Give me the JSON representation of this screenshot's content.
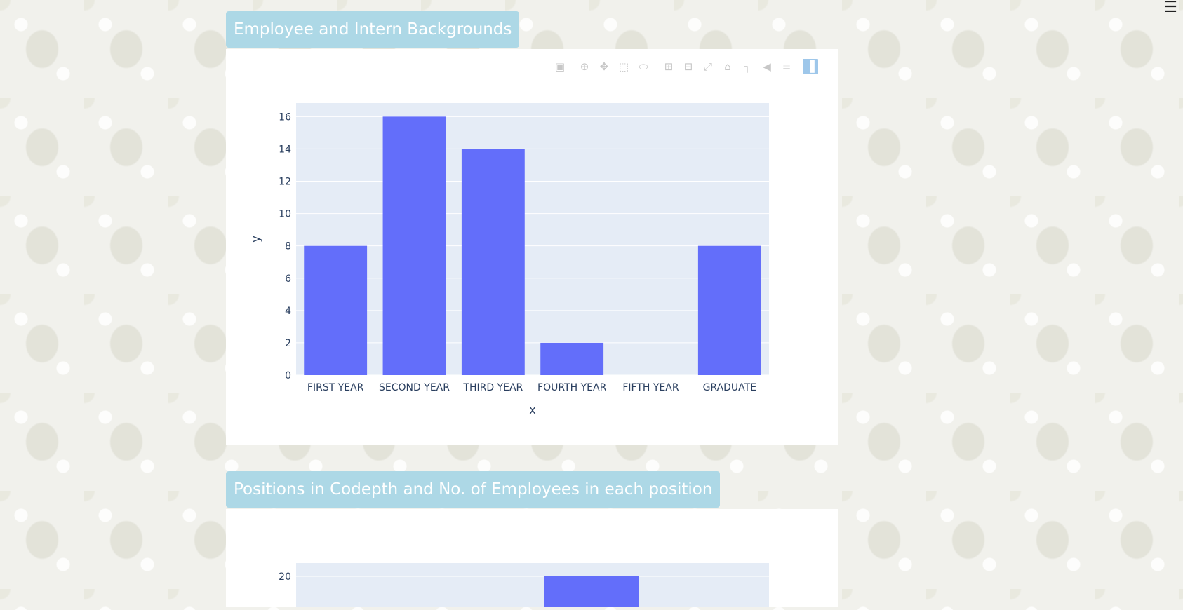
{
  "menu_icon": "☰",
  "section1": {
    "title": "Employee and Intern Backgrounds"
  },
  "section2": {
    "title": "Positions in Codepth and No. of Employees in each position"
  },
  "modebar": {
    "icons": [
      "camera-icon",
      "zoom-icon",
      "pan-icon",
      "box-select-icon",
      "lasso-select-icon",
      "zoom-in-icon",
      "zoom-out-icon",
      "autoscale-icon",
      "reset-axes-icon",
      "spike-lines-icon",
      "hover-closest-icon",
      "hover-compare-icon",
      "plotly-logo-icon"
    ],
    "glyphs": [
      "▣",
      "⊕",
      "✥",
      "⬚",
      "⬭",
      "⊞",
      "⊟",
      "⤢",
      "⌂",
      "┐",
      "◀",
      "≡",
      "▐"
    ]
  },
  "colors": {
    "bar": "#636efa",
    "plot_bg": "#e5ecf6",
    "title_bg": "#add8e6"
  },
  "chart_data": [
    {
      "type": "bar",
      "categories": [
        "FIRST YEAR",
        "SECOND YEAR",
        "THIRD YEAR",
        "FOURTH YEAR",
        "FIFTH YEAR",
        "GRADUATE"
      ],
      "values": [
        8,
        16,
        14,
        2,
        0,
        8
      ],
      "xlabel": "x",
      "ylabel": "y",
      "ylim": [
        0,
        16.84
      ],
      "yticks": [
        0,
        2,
        4,
        6,
        8,
        10,
        12,
        14,
        16
      ],
      "grid": true
    },
    {
      "type": "bar",
      "visible_ytick": 20,
      "visible_bar_value": 20
    }
  ]
}
